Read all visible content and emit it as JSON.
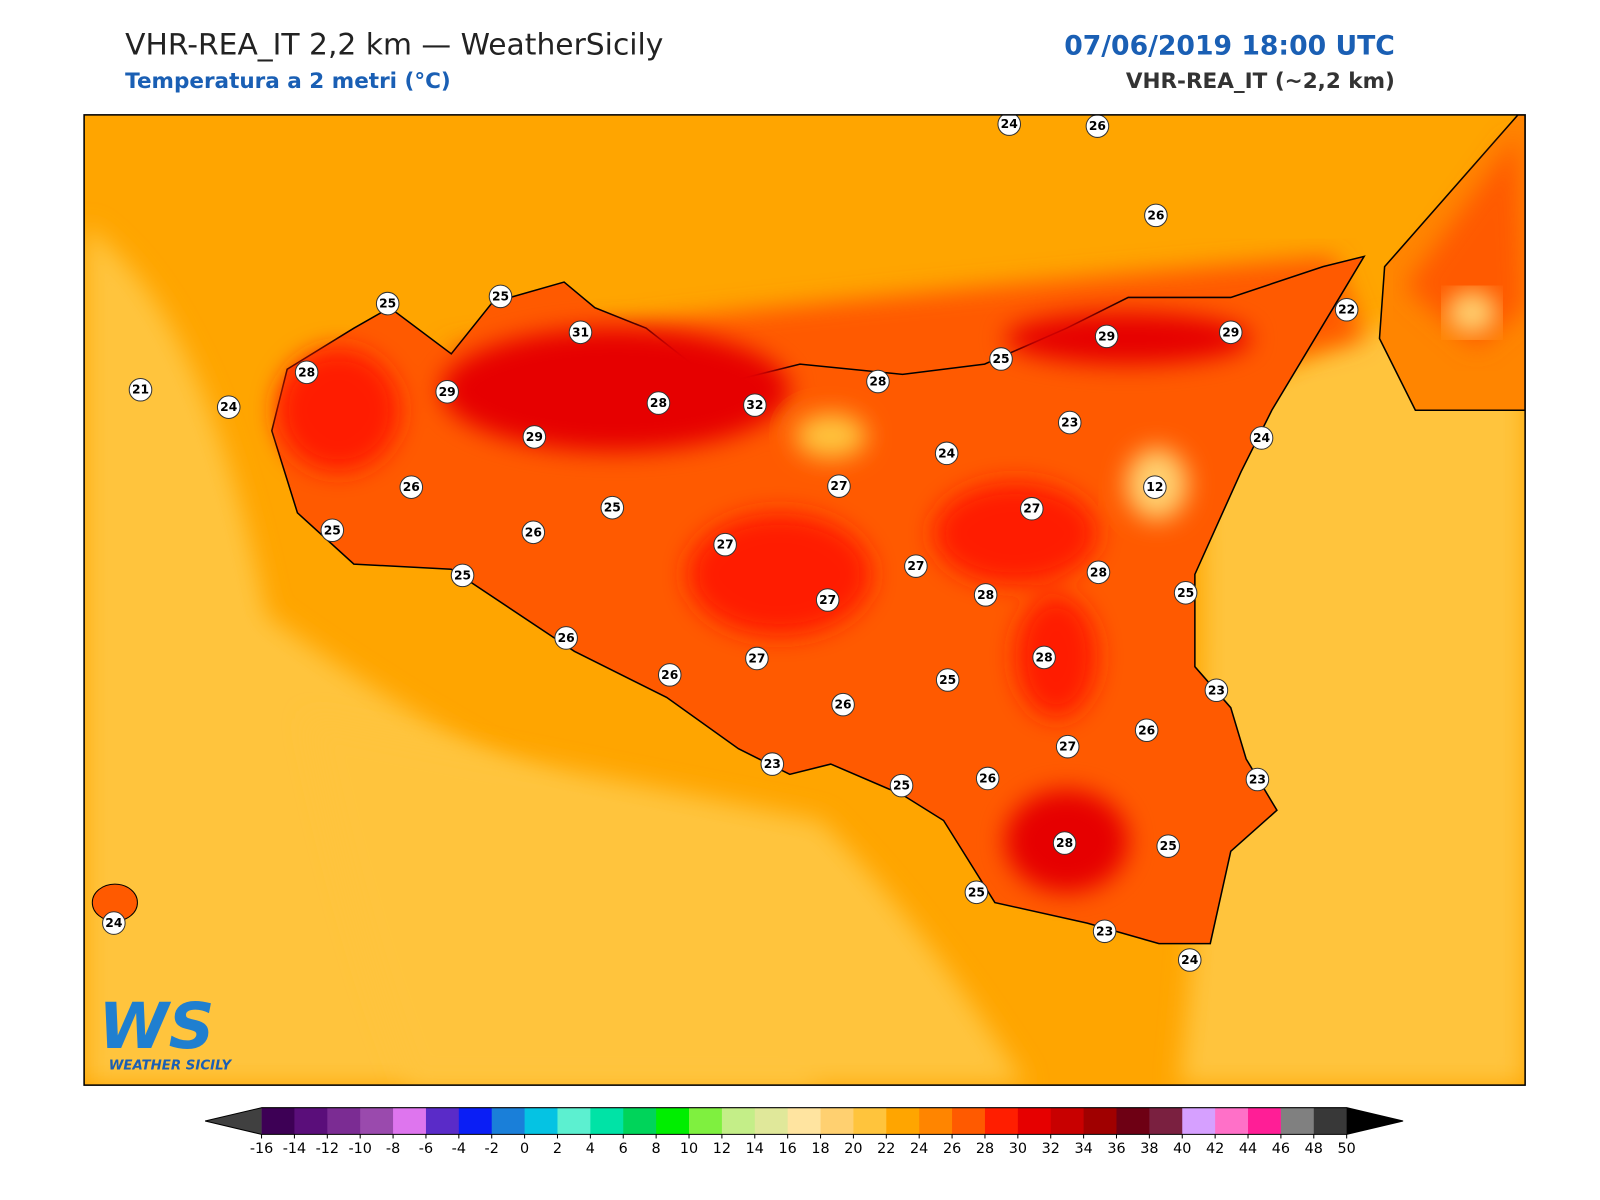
{
  "header": {
    "title": "VHR-REA_IT 2,2 km — WeatherSicily",
    "subtitle": "Temperatura a 2 metri (°C)",
    "datetime": "07/06/2019 18:00 UTC",
    "model": "VHR-REA_IT (~2,2 km)"
  },
  "map": {
    "stations": [
      24,
      26,
      26,
      25,
      25,
      31,
      28,
      21,
      24,
      29,
      28,
      32,
      28,
      25,
      29,
      29,
      22,
      23,
      24,
      24,
      12,
      29,
      26,
      25,
      25,
      26,
      27,
      27,
      27,
      27,
      27,
      28,
      28,
      25,
      25,
      26,
      26,
      27,
      28,
      25,
      26,
      23,
      26,
      27,
      23,
      25,
      26,
      23,
      28,
      25,
      25,
      23,
      24,
      24
    ]
  },
  "logo": {
    "text": "WS",
    "caption": "WEATHER SICILY"
  },
  "colorbar": {
    "ticks": [
      -16,
      -14,
      -12,
      -10,
      -8,
      -6,
      -4,
      -2,
      0,
      2,
      4,
      6,
      8,
      10,
      12,
      14,
      16,
      18,
      20,
      22,
      24,
      26,
      28,
      30,
      32,
      34,
      36,
      38,
      40,
      42,
      44,
      46,
      48,
      50
    ],
    "colors": [
      "#3d0055",
      "#5a0e7a",
      "#7b2c93",
      "#9a4aad",
      "#de75ee",
      "#5a2bc8",
      "#0a1ef5",
      "#1a7fd9",
      "#05c3e3",
      "#5cf0d0",
      "#00e3a6",
      "#00d45a",
      "#00ee00",
      "#7ff03f",
      "#c4ee88",
      "#e0e89a",
      "#ffe4a0",
      "#ffd070",
      "#ffc43c",
      "#ffa500",
      "#ff8500",
      "#ff5a00",
      "#ff1e00",
      "#e60000",
      "#c80000",
      "#a00000",
      "#6e0014",
      "#7a2040",
      "#d6a0ff",
      "#ff70c8",
      "#ff1e96",
      "#808080",
      "#383838"
    ],
    "under": "#404040",
    "over": "#000000"
  }
}
